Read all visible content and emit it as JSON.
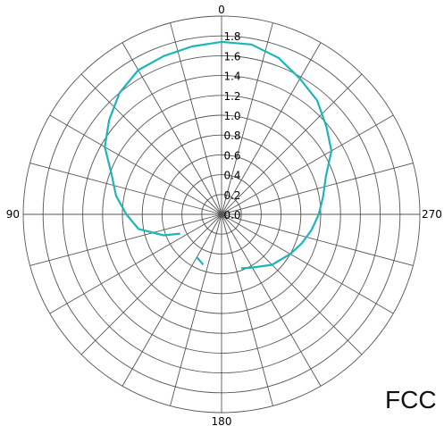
{
  "chart_data": {
    "type": "polar-line",
    "title": "",
    "angle_unit": "degrees",
    "angle_direction": "counterclockwise",
    "angle_zero": "top",
    "angle_labels": [
      {
        "angle": 0,
        "text": "0"
      },
      {
        "angle": 90,
        "text": "90"
      },
      {
        "angle": 180,
        "text": "180"
      },
      {
        "angle": 270,
        "text": "270"
      }
    ],
    "radial_range": [
      0,
      2.0
    ],
    "radial_ticks": [
      0.0,
      0.2,
      0.4,
      0.6,
      0.8,
      1.0,
      1.2,
      1.4,
      1.6,
      1.8
    ],
    "radial_tick_labels": [
      "0.0",
      "0.2",
      "0.4",
      "0.6",
      "0.8",
      "1.0",
      "1.2",
      "1.4",
      "1.6",
      "1.8"
    ],
    "spoke_step_deg": 15,
    "grid": true,
    "series": [
      {
        "color": "#1fb5b8",
        "points": [
          {
            "angle": 0,
            "r": 1.74
          },
          {
            "angle": 10,
            "r": 1.72
          },
          {
            "angle": 20,
            "r": 1.7
          },
          {
            "angle": 30,
            "r": 1.68
          },
          {
            "angle": 40,
            "r": 1.6
          },
          {
            "angle": 50,
            "r": 1.48
          },
          {
            "angle": 60,
            "r": 1.36
          },
          {
            "angle": 70,
            "r": 1.18
          },
          {
            "angle": 80,
            "r": 1.08
          },
          {
            "angle": 90,
            "r": 0.96
          },
          {
            "angle": 100,
            "r": 0.85
          },
          {
            "angle": 110,
            "r": 0.62
          },
          {
            "angle": 115,
            "r": 0.46
          },
          {
            "angle": 150,
            "r": 0.5
          },
          {
            "angle": 160,
            "r": 0.54
          },
          {
            "angle": 200,
            "r": 0.58
          },
          {
            "angle": 210,
            "r": 0.62
          },
          {
            "angle": 225,
            "r": 0.72
          },
          {
            "angle": 240,
            "r": 0.8
          },
          {
            "angle": 250,
            "r": 0.86
          },
          {
            "angle": 260,
            "r": 0.92
          },
          {
            "angle": 270,
            "r": 0.98
          },
          {
            "angle": 280,
            "r": 1.04
          },
          {
            "angle": 290,
            "r": 1.12
          },
          {
            "angle": 300,
            "r": 1.28
          },
          {
            "angle": 310,
            "r": 1.38
          },
          {
            "angle": 320,
            "r": 1.5
          },
          {
            "angle": 330,
            "r": 1.58
          },
          {
            "angle": 340,
            "r": 1.68
          },
          {
            "angle": 350,
            "r": 1.74
          },
          {
            "angle": 360,
            "r": 1.74
          }
        ]
      }
    ]
  },
  "corner_label": "FCC"
}
